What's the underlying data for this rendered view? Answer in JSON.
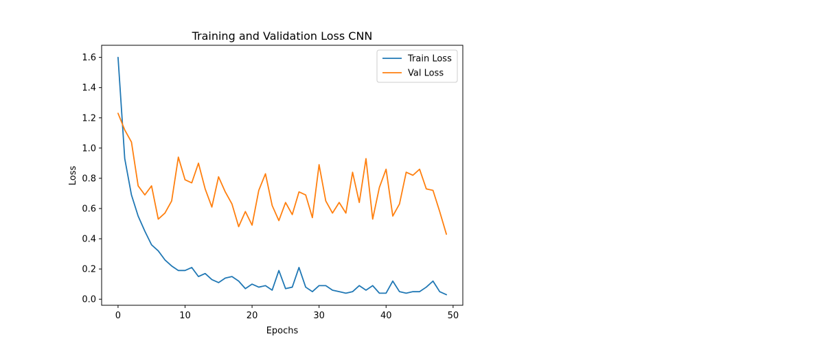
{
  "chart_data": {
    "type": "line",
    "title": "Training and Validation Loss CNN",
    "xlabel": "Epochs",
    "ylabel": "Loss",
    "xlim": [
      -2.45,
      51.45
    ],
    "ylim": [
      -0.04,
      1.68
    ],
    "xticks": [
      0,
      10,
      20,
      30,
      40,
      50
    ],
    "yticks": [
      0.0,
      0.2,
      0.4,
      0.6,
      0.8,
      1.0,
      1.2,
      1.4,
      1.6
    ],
    "grid": false,
    "legend_position": "top-right",
    "x": [
      0,
      1,
      2,
      3,
      4,
      5,
      6,
      7,
      8,
      9,
      10,
      11,
      12,
      13,
      14,
      15,
      16,
      17,
      18,
      19,
      20,
      21,
      22,
      23,
      24,
      25,
      26,
      27,
      28,
      29,
      30,
      31,
      32,
      33,
      34,
      35,
      36,
      37,
      38,
      39,
      40,
      41,
      42,
      43,
      44,
      45,
      46,
      47,
      48,
      49
    ],
    "series": [
      {
        "name": "Train Loss",
        "color": "#1f77b4",
        "values": [
          1.6,
          0.93,
          0.69,
          0.55,
          0.45,
          0.36,
          0.32,
          0.26,
          0.22,
          0.19,
          0.19,
          0.21,
          0.15,
          0.17,
          0.13,
          0.11,
          0.14,
          0.15,
          0.12,
          0.07,
          0.1,
          0.08,
          0.09,
          0.06,
          0.19,
          0.07,
          0.08,
          0.21,
          0.08,
          0.05,
          0.09,
          0.09,
          0.06,
          0.05,
          0.04,
          0.05,
          0.09,
          0.06,
          0.09,
          0.04,
          0.04,
          0.12,
          0.05,
          0.04,
          0.05,
          0.05,
          0.08,
          0.12,
          0.05,
          0.03
        ]
      },
      {
        "name": "Val Loss",
        "color": "#ff7f0e",
        "values": [
          1.23,
          1.12,
          1.04,
          0.75,
          0.69,
          0.75,
          0.53,
          0.57,
          0.65,
          0.94,
          0.79,
          0.77,
          0.9,
          0.73,
          0.61,
          0.81,
          0.71,
          0.63,
          0.48,
          0.58,
          0.49,
          0.72,
          0.83,
          0.62,
          0.52,
          0.64,
          0.56,
          0.71,
          0.69,
          0.54,
          0.89,
          0.65,
          0.57,
          0.64,
          0.57,
          0.84,
          0.64,
          0.93,
          0.53,
          0.74,
          0.86,
          0.55,
          0.63,
          0.84,
          0.82,
          0.86,
          0.73,
          0.72,
          0.58,
          0.43
        ]
      }
    ]
  }
}
